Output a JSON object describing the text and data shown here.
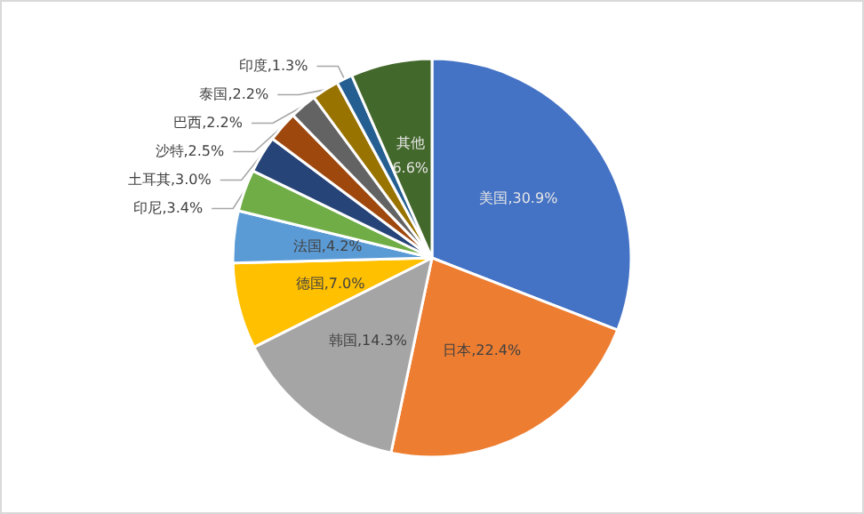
{
  "chart_data": {
    "type": "pie",
    "categories": [
      "美国",
      "日本",
      "韩国",
      "德国",
      "法国",
      "印尼",
      "土耳其",
      "沙特",
      "巴西",
      "泰国",
      "印度",
      "其他"
    ],
    "values": [
      30.9,
      22.4,
      14.3,
      7.0,
      4.2,
      3.4,
      3.0,
      2.5,
      2.2,
      2.2,
      1.3,
      6.6
    ],
    "value_labels": [
      "30.9%",
      "22.4%",
      "14.3%",
      "7.0%",
      "4.2%",
      "3.4%",
      "3.0%",
      "2.5%",
      "2.2%",
      "2.2%",
      "1.3%",
      "6.6%"
    ],
    "colors": [
      "#4472c4",
      "#ed7d31",
      "#a5a5a5",
      "#ffc000",
      "#5b9bd5",
      "#70ad47",
      "#264478",
      "#9e480e",
      "#636363",
      "#997300",
      "#255e91",
      "#43682b"
    ],
    "legend": false
  }
}
